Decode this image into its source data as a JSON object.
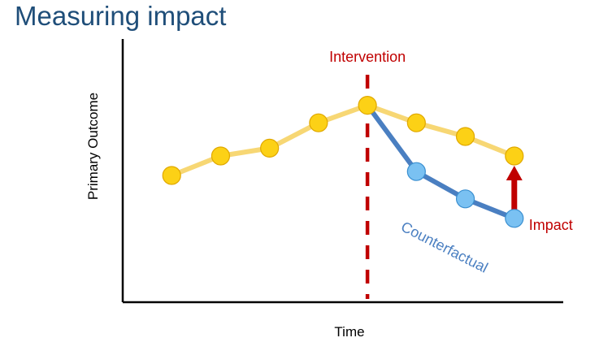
{
  "title": "Measuring impact",
  "axes": {
    "x_label": "Time",
    "y_label": "Primary Outcome"
  },
  "annotations": {
    "intervention_label": "Intervention",
    "counterfactual_label": "Counterfactual",
    "impact_label": "Impact"
  },
  "colors": {
    "title": "#1f4e79",
    "observed_line": "#f7d774",
    "observed_point": "#fcd116",
    "counterfactual_line": "#4a7fc1",
    "counterfactual_point": "#7ac1f2",
    "intervention": "#c00000",
    "impact_arrow": "#c00000",
    "axis": "#000000"
  },
  "chart_data": {
    "type": "line",
    "x": [
      1,
      2,
      3,
      4,
      5,
      6,
      7,
      8
    ],
    "intervention_x": 5,
    "series": [
      {
        "values": [
          3,
          4,
          4.4,
          5.7,
          6.6,
          5.7,
          5.0,
          4.0
        ]
      },
      {
        "x": [
          5,
          6,
          7,
          8
        ],
        "values": [
          6.6,
          3.2,
          1.8,
          0.8
        ]
      }
    ],
    "xlim": [
      0,
      9
    ],
    "ylim": [
      -3.5,
      10
    ],
    "grid": false
  }
}
